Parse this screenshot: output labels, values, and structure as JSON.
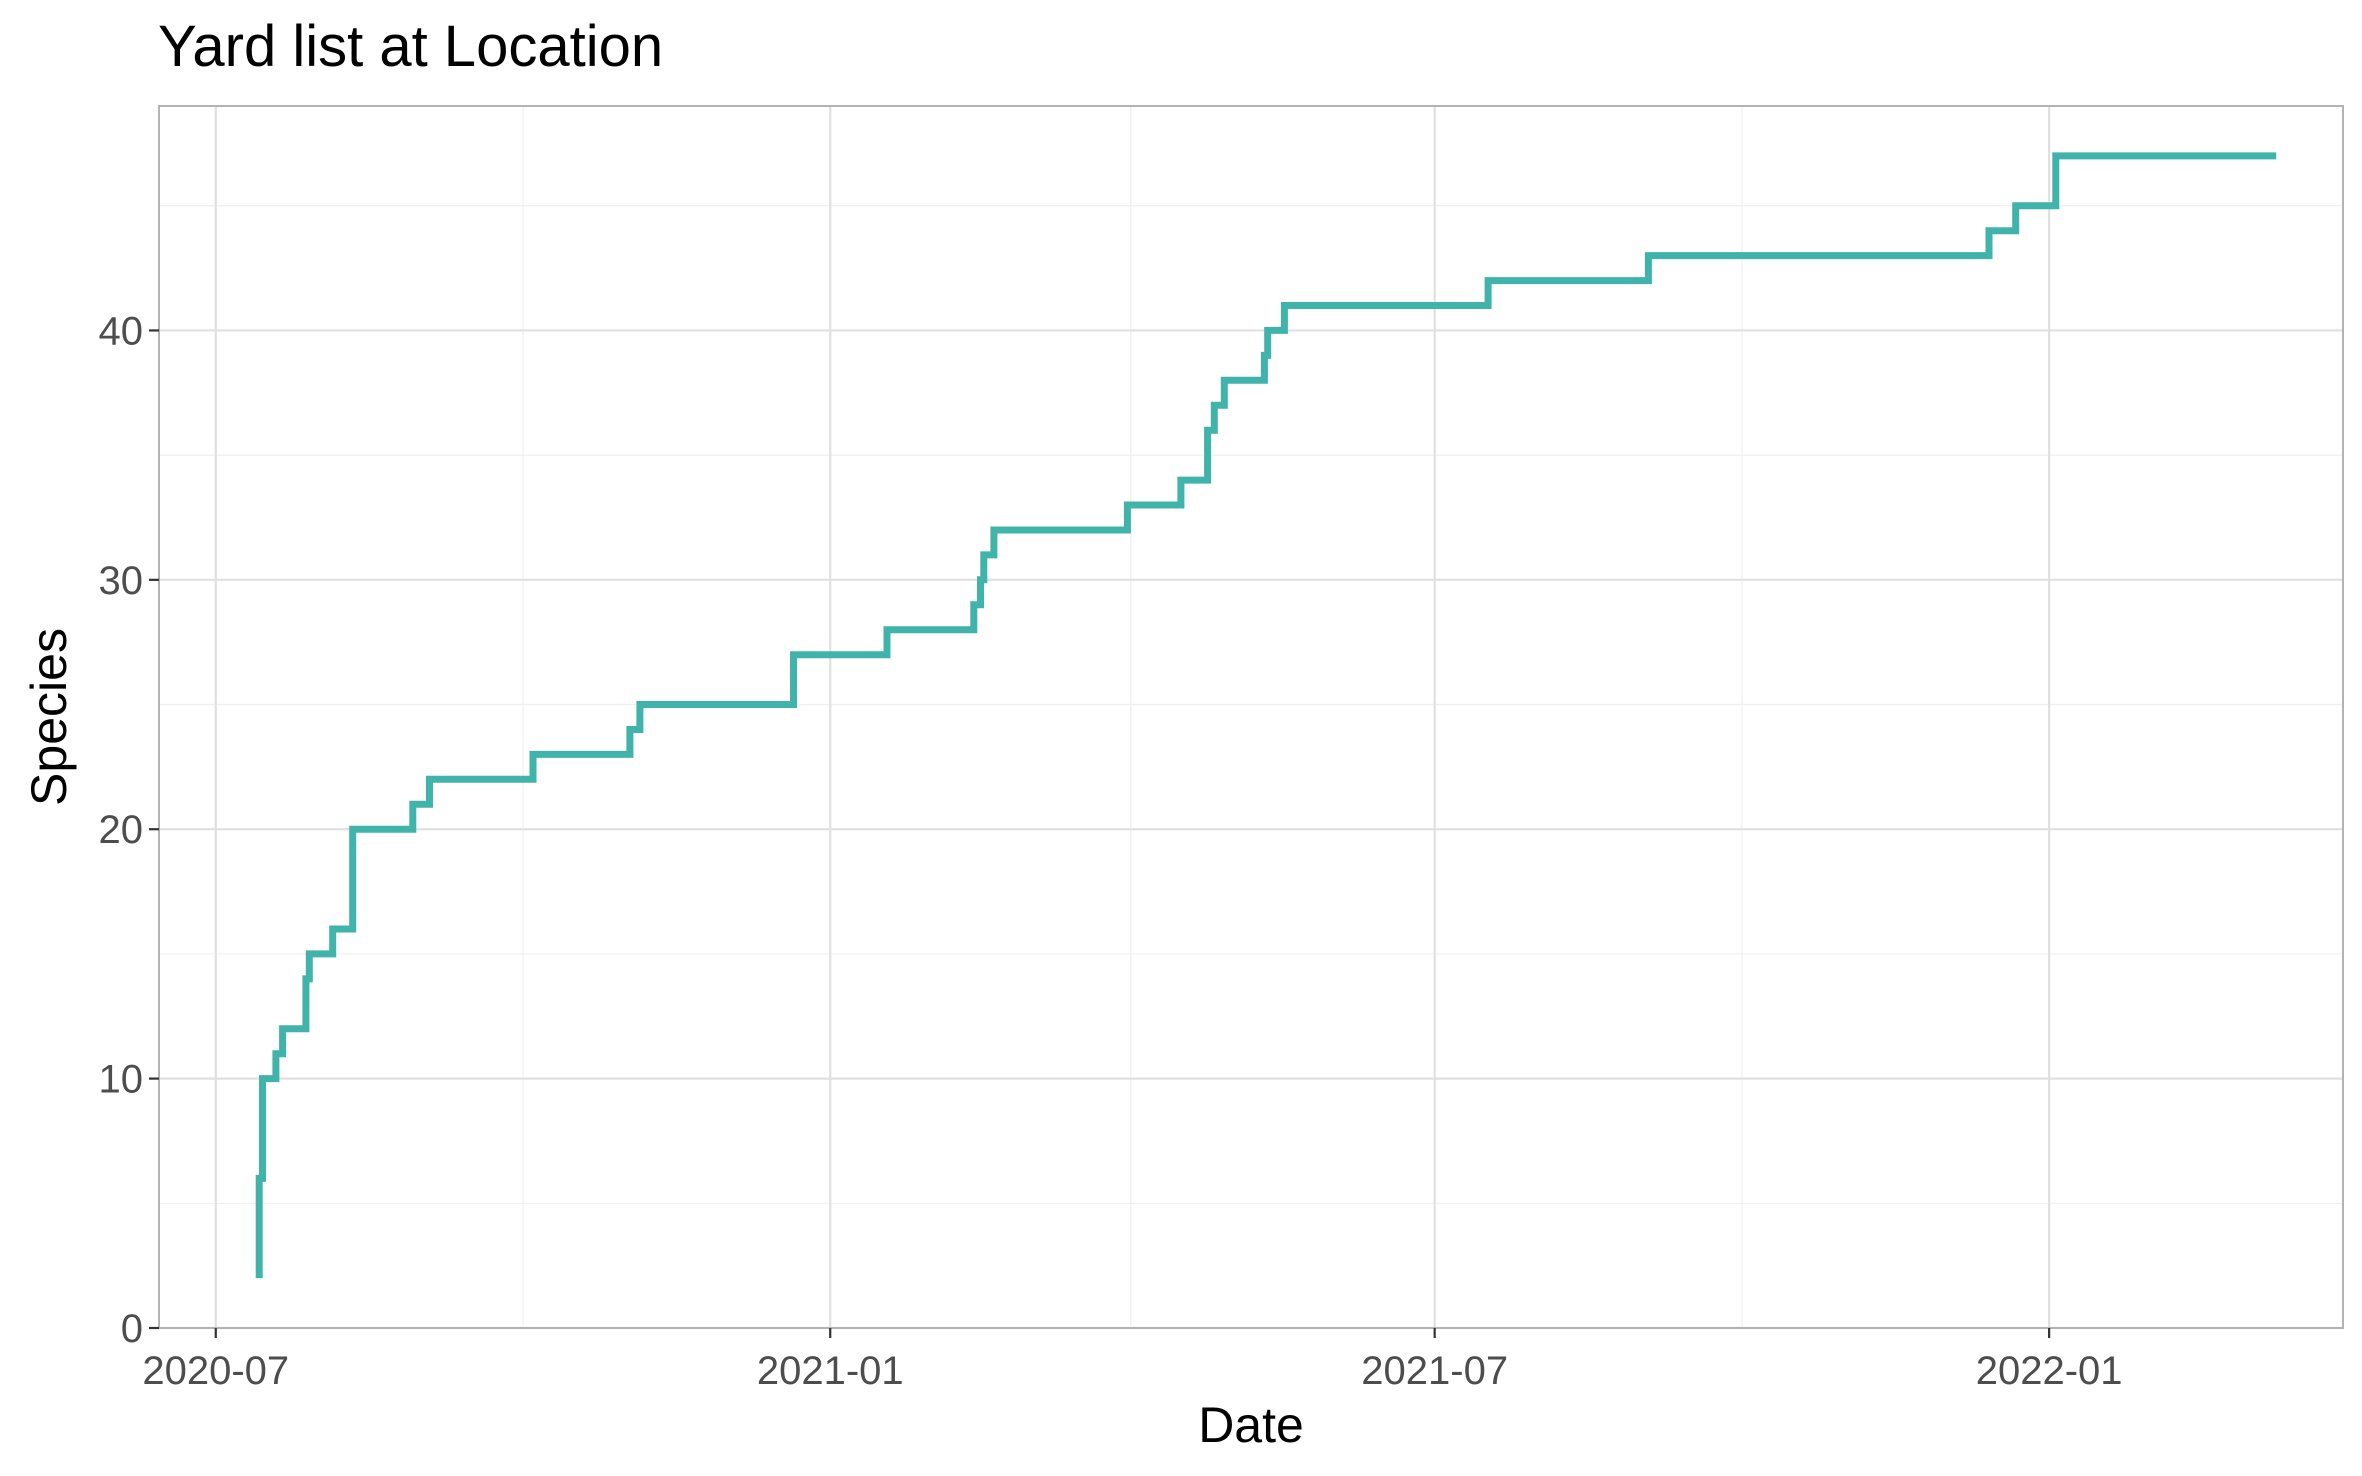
{
  "chart_data": {
    "type": "line",
    "step": "hv",
    "title": "Yard list at Location",
    "xlabel": "Date",
    "ylabel": "Species",
    "x_type": "date",
    "xlim": [
      "2020-06-14",
      "2022-03-30"
    ],
    "ylim": [
      0,
      49
    ],
    "x_ticks": [
      "2020-07-01",
      "2021-01-01",
      "2021-07-01",
      "2022-01-01"
    ],
    "x_tick_labels": [
      "2020-07",
      "2021-01",
      "2021-07",
      "2022-01"
    ],
    "x_minor_ticks": [
      "2020-10-01",
      "2021-04-01",
      "2021-10-01"
    ],
    "y_ticks": [
      0,
      10,
      20,
      30,
      40
    ],
    "y_tick_labels": [
      "0",
      "10",
      "20",
      "30",
      "40"
    ],
    "y_minor_ticks": [
      5,
      15,
      25,
      35,
      45
    ],
    "grid": true,
    "legend": "none",
    "color": "#40b4aa",
    "series": [
      {
        "x": [
          "2020-07-14",
          "2020-07-14",
          "2020-07-15",
          "2020-07-19",
          "2020-07-21",
          "2020-07-28",
          "2020-07-29",
          "2020-08-05",
          "2020-08-11",
          "2020-08-29",
          "2020-09-03",
          "2020-10-04",
          "2020-11-02",
          "2020-11-05",
          "2020-12-21",
          "2021-01-18",
          "2021-02-13",
          "2021-02-15",
          "2021-02-16",
          "2021-02-19",
          "2021-03-31",
          "2021-04-16",
          "2021-04-24",
          "2021-04-26",
          "2021-04-29",
          "2021-05-11",
          "2021-05-12",
          "2021-05-17",
          "2021-07-17",
          "2021-09-03",
          "2021-12-14",
          "2021-12-22",
          "2022-01-03",
          "2022-03-10"
        ],
        "y": [
          2,
          6,
          10,
          11,
          12,
          14,
          15,
          16,
          20,
          21,
          22,
          23,
          24,
          25,
          27,
          28,
          29,
          30,
          31,
          32,
          33,
          34,
          36,
          37,
          38,
          39,
          40,
          41,
          42,
          43,
          44,
          45,
          47,
          47
        ]
      }
    ]
  }
}
